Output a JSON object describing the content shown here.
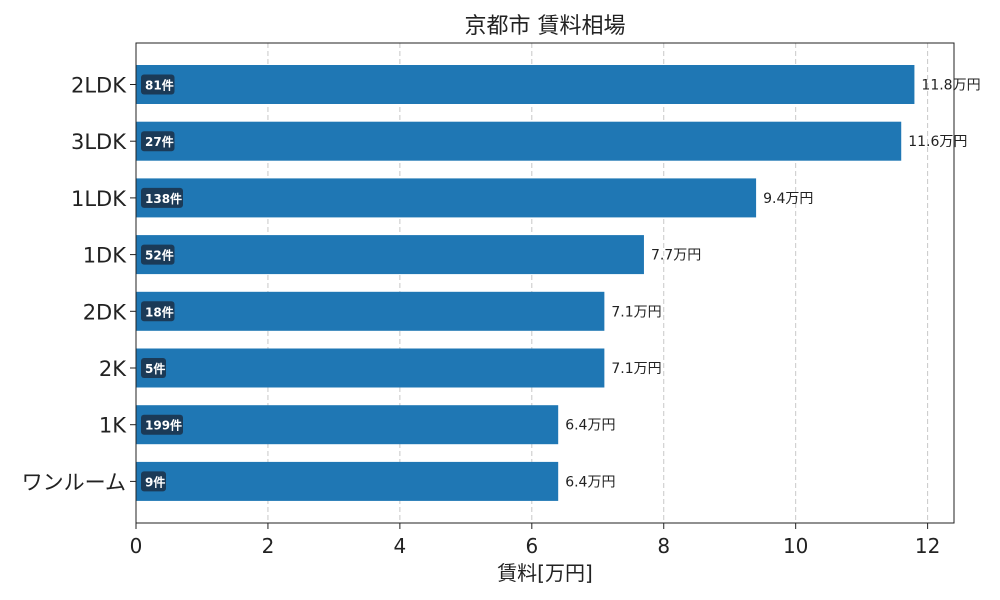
{
  "chart_data": {
    "type": "bar",
    "orientation": "horizontal",
    "title": "京都市 賃料相場",
    "xlabel": "賃料[万円]",
    "ylabel": "",
    "xlim": [
      0,
      12.4
    ],
    "xticks": [
      0,
      2,
      4,
      6,
      8,
      10,
      12
    ],
    "grid": "x-dashed",
    "bar_color": "#1f77b4",
    "badge_color": "#1b3a57",
    "categories": [
      "2LDK",
      "3LDK",
      "1LDK",
      "1DK",
      "2DK",
      "2K",
      "1K",
      "ワンルーム"
    ],
    "values": [
      11.8,
      11.6,
      9.4,
      7.7,
      7.1,
      7.1,
      6.4,
      6.4
    ],
    "value_labels": [
      "11.8万円",
      "11.6万円",
      "9.4万円",
      "7.7万円",
      "7.1万円",
      "7.1万円",
      "6.4万円",
      "6.4万円"
    ],
    "counts": [
      "81件",
      "27件",
      "138件",
      "52件",
      "18件",
      "5件",
      "199件",
      "9件"
    ]
  }
}
